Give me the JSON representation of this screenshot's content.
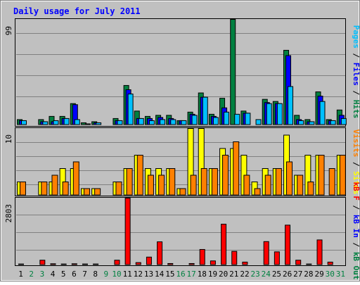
{
  "chart_data": [
    {
      "type": "bar",
      "title": "Daily usage for July 2011",
      "panel": "top",
      "ymax_label": "99",
      "ylim": [
        0,
        99
      ],
      "legend": [
        "Pages",
        "Files",
        "Hits"
      ],
      "categories": [
        "1",
        "2",
        "3",
        "4",
        "5",
        "6",
        "7",
        "8",
        "9",
        "10",
        "11",
        "12",
        "13",
        "14",
        "15",
        "16",
        "17",
        "18",
        "19",
        "20",
        "21",
        "22",
        "23",
        "24",
        "25",
        "26",
        "27",
        "28",
        "29",
        "30",
        "31"
      ],
      "series": [
        {
          "name": "Hits",
          "values": [
            5,
            0,
            5,
            8,
            8,
            20,
            2,
            3,
            0,
            6,
            37,
            13,
            8,
            9,
            9,
            4,
            12,
            30,
            10,
            25,
            99,
            13,
            0,
            24,
            22,
            70,
            9,
            5,
            31,
            5,
            14
          ]
        },
        {
          "name": "Files",
          "values": [
            4,
            0,
            3,
            3,
            6,
            19,
            0,
            2,
            0,
            4,
            33,
            6,
            6,
            7,
            6,
            4,
            10,
            26,
            8,
            16,
            0,
            11,
            0,
            21,
            20,
            65,
            5,
            3,
            27,
            4,
            9
          ]
        },
        {
          "name": "Pages",
          "values": [
            4,
            0,
            3,
            4,
            6,
            5,
            1,
            2,
            0,
            4,
            29,
            6,
            4,
            5,
            5,
            4,
            9,
            26,
            7,
            12,
            10,
            11,
            5,
            20,
            20,
            36,
            4,
            3,
            22,
            4,
            6
          ]
        }
      ]
    },
    {
      "type": "bar",
      "panel": "middle",
      "ymax_label": "10",
      "ylim": [
        0,
        10
      ],
      "legend": [
        "Visits",
        "Sites"
      ],
      "categories": [
        "1",
        "2",
        "3",
        "4",
        "5",
        "6",
        "7",
        "8",
        "9",
        "10",
        "11",
        "12",
        "13",
        "14",
        "15",
        "16",
        "17",
        "18",
        "19",
        "20",
        "21",
        "22",
        "23",
        "24",
        "25",
        "26",
        "27",
        "28",
        "29",
        "30",
        "31"
      ],
      "series": [
        {
          "name": "Visits",
          "values": [
            2,
            0,
            2,
            2,
            4,
            4,
            1,
            1,
            0,
            2,
            4,
            6,
            4,
            4,
            4,
            1,
            10,
            10,
            4,
            7,
            7,
            6,
            2,
            4,
            4,
            9,
            3,
            6,
            6,
            0,
            6
          ]
        },
        {
          "name": "Sites",
          "values": [
            2,
            0,
            2,
            3,
            2,
            5,
            1,
            1,
            0,
            2,
            4,
            6,
            3,
            3,
            4,
            1,
            3,
            4,
            4,
            6,
            8,
            3,
            1,
            3,
            4,
            5,
            3,
            2,
            6,
            4,
            6
          ]
        }
      ]
    },
    {
      "type": "bar",
      "panel": "bottom",
      "ymax_label": "2803",
      "ylim": [
        0,
        2803
      ],
      "legend": [
        "kB F",
        "kB In",
        "kB Out"
      ],
      "categories": [
        "1",
        "2",
        "3",
        "4",
        "5",
        "6",
        "7",
        "8",
        "9",
        "10",
        "11",
        "12",
        "13",
        "14",
        "15",
        "16",
        "17",
        "18",
        "19",
        "20",
        "21",
        "22",
        "23",
        "24",
        "25",
        "26",
        "27",
        "28",
        "29",
        "30",
        "31"
      ],
      "series": [
        {
          "name": "kB F",
          "values": [
            40,
            0,
            200,
            50,
            40,
            50,
            40,
            40,
            0,
            200,
            2803,
            100,
            330,
            970,
            60,
            0,
            60,
            650,
            170,
            1710,
            570,
            120,
            0,
            980,
            550,
            1670,
            200,
            40,
            1050,
            120,
            0
          ]
        }
      ],
      "weekend_days": [
        2,
        3,
        9,
        10,
        16,
        17,
        23,
        24,
        30,
        31
      ]
    }
  ],
  "colors": {
    "background": "#c0c0c0",
    "page": "#ffffff",
    "title": "#0000ff",
    "hits": "#008040",
    "files": "#0000ff",
    "pages": "#00c0ff",
    "visits": "#ffff00",
    "sites": "#ff8000",
    "kbytes": "#ff0000",
    "weekday_label": "#000000",
    "weekend_label": "#008040",
    "gridline": "#808080"
  }
}
